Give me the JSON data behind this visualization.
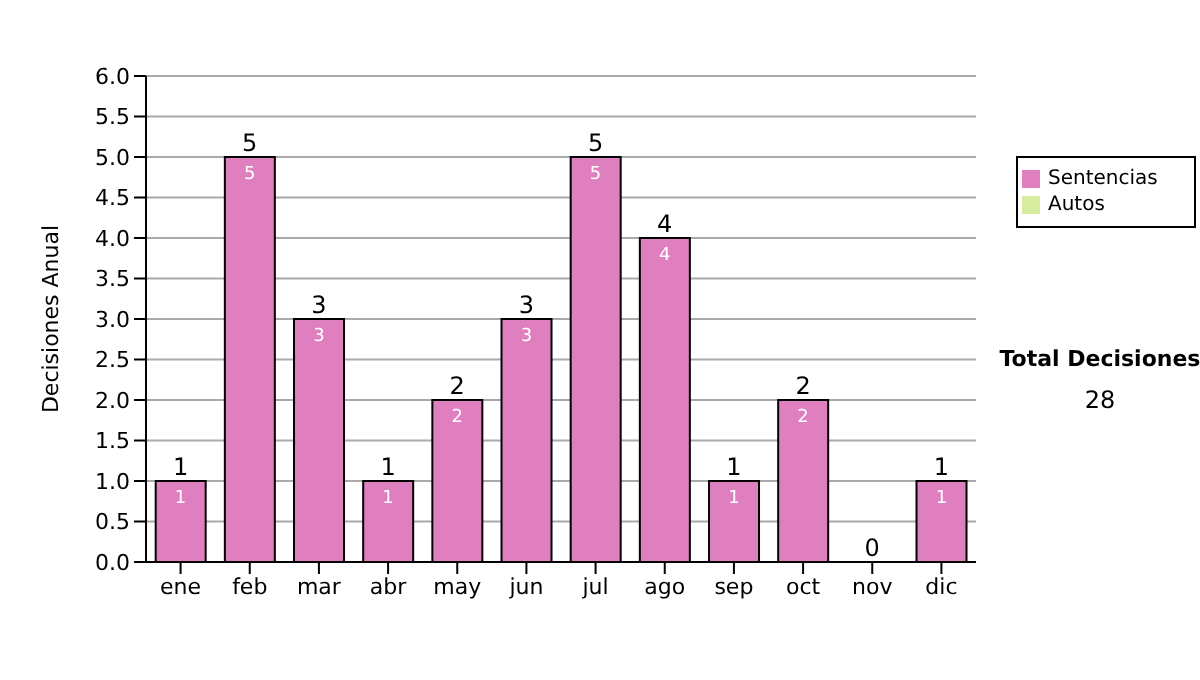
{
  "chart_data": {
    "type": "bar",
    "ylabel": "Decisiones Anual",
    "categories": [
      "ene",
      "feb",
      "mar",
      "abr",
      "may",
      "jun",
      "jul",
      "ago",
      "sep",
      "oct",
      "nov",
      "dic"
    ],
    "series": [
      {
        "name": "Sentencias",
        "color": "#e07fc0",
        "values": [
          1,
          5,
          3,
          1,
          2,
          3,
          5,
          4,
          1,
          2,
          0,
          1
        ],
        "value_labels": [
          "1",
          "5",
          "3",
          "1",
          "2",
          "3",
          "5",
          "4",
          "1",
          "2",
          null,
          "1"
        ]
      },
      {
        "name": "Autos",
        "color": "#d8eca0",
        "values": [
          0,
          0,
          0,
          0,
          0,
          0,
          0,
          0,
          0,
          0,
          0,
          0
        ]
      }
    ],
    "stacked": true,
    "totals": [
      "1",
      "5",
      "3",
      "1",
      "2",
      "3",
      "5",
      "4",
      "1",
      "2",
      "0",
      "1"
    ],
    "ylim": [
      0,
      6
    ],
    "yticks": [
      {
        "value": 0,
        "label": "0.0"
      },
      {
        "value": 0.5,
        "label": "0.5"
      },
      {
        "value": 1,
        "label": "1.0"
      },
      {
        "value": 1.5,
        "label": "1.5"
      },
      {
        "value": 2,
        "label": "2.0"
      },
      {
        "value": 2.5,
        "label": "2.5"
      },
      {
        "value": 3,
        "label": "3.0"
      },
      {
        "value": 3.5,
        "label": "3.5"
      },
      {
        "value": 4,
        "label": "4.0"
      },
      {
        "value": 4.5,
        "label": "4.5"
      },
      {
        "value": 5,
        "label": "5.0"
      },
      {
        "value": 5.5,
        "label": "5.5"
      },
      {
        "value": 6,
        "label": "6.0"
      }
    ],
    "grid": "y",
    "legend": "right",
    "annotations": [
      "Total Decisiones",
      "28"
    ]
  }
}
